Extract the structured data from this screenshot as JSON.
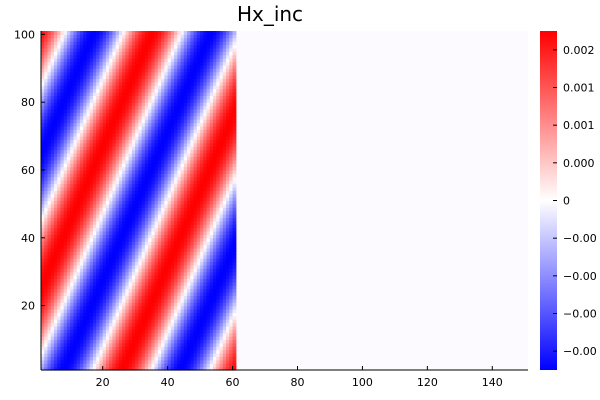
{
  "chart_data": {
    "type": "heatmap",
    "title": "Hx_inc",
    "xlabel": "",
    "ylabel": "",
    "x_range": [
      1,
      151
    ],
    "y_range": [
      1,
      101
    ],
    "x_ticks": [
      20,
      40,
      60,
      80,
      100,
      120,
      140
    ],
    "y_ticks": [
      20,
      40,
      60,
      80,
      100
    ],
    "field": {
      "nonzero_x_range": [
        1,
        61
      ],
      "wavelength_along_x": 36,
      "crest_slope_dy_dx": 2.2,
      "crest_at_y1_x": 26,
      "note_colorbar_symmetric": true
    },
    "colormap": [
      "#0000ff",
      "#ffffff",
      "#ff0000"
    ],
    "colorbar": {
      "range": [
        -0.0025,
        0.0025
      ],
      "tick_labels": [
        "−0.00",
        "−0.00",
        "−0.00",
        "−0.00",
        "0",
        "0.000",
        "0.001",
        "0.001",
        "0.002"
      ]
    }
  }
}
